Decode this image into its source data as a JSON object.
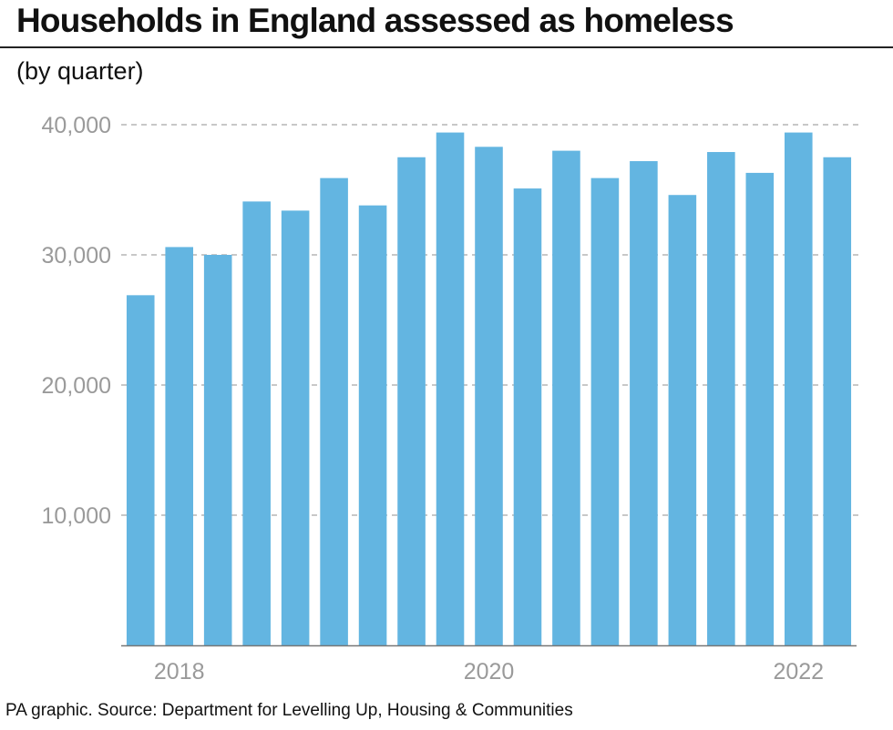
{
  "title": "Households in England assessed as homeless",
  "subtitle": "(by quarter)",
  "source": "PA graphic. Source: Department for Levelling Up, Housing & Communities",
  "colors": {
    "bar": "#63b5e1",
    "grid": "#b5b5b5",
    "tick_text": "#9a9a9a",
    "axis": "#777777"
  },
  "chart_data": {
    "type": "bar",
    "title": "Households in England assessed as homeless",
    "subtitle": "(by quarter)",
    "xlabel": "",
    "ylabel": "",
    "ylim": [
      0,
      40000
    ],
    "yticks": [
      10000,
      20000,
      30000,
      40000
    ],
    "ytick_labels": [
      "10,000",
      "20,000",
      "30,000",
      "40,000"
    ],
    "x_tick_labels": [
      {
        "label": "2018",
        "bar_index": 1
      },
      {
        "label": "2020",
        "bar_index": 9
      },
      {
        "label": "2022",
        "bar_index": 17
      }
    ],
    "grid": true,
    "legend": "none",
    "values": [
      26900,
      30600,
      30000,
      34100,
      33400,
      35900,
      33800,
      37500,
      39400,
      38300,
      35100,
      38000,
      35900,
      37200,
      34600,
      37900,
      36300,
      39400,
      37500
    ]
  }
}
